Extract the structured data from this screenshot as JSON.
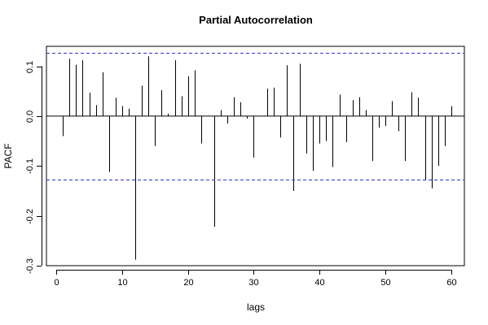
{
  "chart_data": {
    "type": "bar",
    "subtype": "pacf-spikes",
    "title": "Partial Autocorrelation",
    "xlabel": "lags",
    "ylabel": "PACF",
    "xlim": [
      -1.5,
      62
    ],
    "ylim": [
      -0.3,
      0.14
    ],
    "x_ticks": [
      0,
      10,
      20,
      30,
      40,
      50,
      60
    ],
    "y_ticks": [
      -0.3,
      -0.2,
      -0.1,
      0.0,
      0.1
    ],
    "ci_bounds": [
      0.127,
      -0.127
    ],
    "ci_color": "#3333cc",
    "grid": false,
    "lags": [
      1,
      2,
      3,
      4,
      5,
      6,
      7,
      8,
      9,
      10,
      11,
      12,
      13,
      14,
      15,
      16,
      17,
      18,
      19,
      20,
      21,
      22,
      23,
      24,
      25,
      26,
      27,
      28,
      29,
      30,
      31,
      32,
      33,
      34,
      35,
      36,
      37,
      38,
      39,
      40,
      41,
      42,
      43,
      44,
      45,
      46,
      47,
      48,
      49,
      50,
      51,
      52,
      53,
      54,
      55,
      56,
      57,
      58,
      59,
      60
    ],
    "values": [
      -0.04,
      0.115,
      0.103,
      0.112,
      0.047,
      0.022,
      0.088,
      -0.112,
      0.037,
      0.02,
      0.015,
      -0.288,
      0.061,
      0.12,
      -0.06,
      0.052,
      0.005,
      0.112,
      0.04,
      0.08,
      0.092,
      -0.055,
      0.0,
      -0.222,
      0.012,
      -0.015,
      0.038,
      0.028,
      -0.005,
      -0.083,
      0.0,
      0.055,
      0.057,
      -0.043,
      0.102,
      -0.15,
      0.105,
      -0.075,
      -0.11,
      -0.055,
      -0.05,
      -0.102,
      0.043,
      -0.052,
      0.032,
      0.038,
      0.012,
      -0.09,
      -0.023,
      -0.02,
      0.03,
      -0.03,
      -0.09,
      0.048,
      0.037,
      -0.128,
      -0.145,
      -0.1,
      -0.06,
      0.02
    ]
  }
}
